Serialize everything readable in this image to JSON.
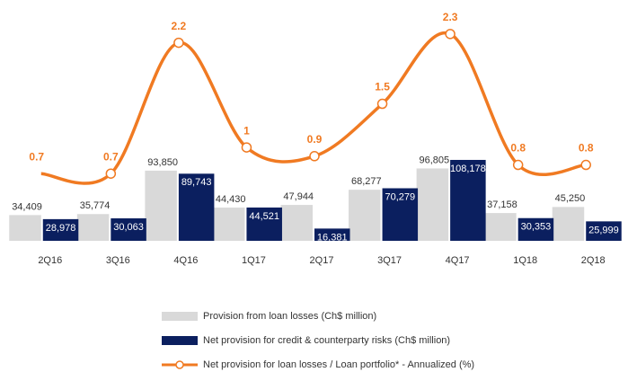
{
  "chart_data": {
    "type": "bar",
    "categories": [
      "2Q16",
      "3Q16",
      "4Q16",
      "1Q17",
      "2Q17",
      "3Q17",
      "4Q17",
      "1Q18",
      "2Q18"
    ],
    "series": [
      {
        "name": "Provision from loan losses (Ch$ million)",
        "color": "#d9d9d9",
        "values": [
          34409,
          35774,
          93850,
          44430,
          47944,
          68277,
          96805,
          37158,
          45250
        ],
        "value_labels": [
          "34,409",
          "35,774",
          "93,850",
          "44,430",
          "47,944",
          "68,277",
          "96,805",
          "37,158",
          "45,250"
        ]
      },
      {
        "name": "Net provision for credit & counterparty risks (Ch$ million)",
        "color": "#0b1f5f",
        "values": [
          28978,
          30063,
          89743,
          44521,
          16381,
          70279,
          108178,
          30353,
          25999
        ],
        "value_labels": [
          "28,978",
          "30,063",
          "89,743",
          "44,521",
          "16,381",
          "70,279",
          "108,178",
          "30,353",
          "25,999"
        ]
      },
      {
        "name": "Net provision for loan losses / Loan portfolio* - Annualized (%)",
        "color": "#f07a22",
        "axis": "y2",
        "type": "line",
        "values": [
          0.7,
          0.7,
          2.2,
          1.0,
          0.9,
          1.5,
          2.3,
          0.8,
          0.8
        ]
      }
    ],
    "ylim": [
      0,
      322000
    ],
    "y2lim": [
      -0.07,
      2.69
    ]
  }
}
